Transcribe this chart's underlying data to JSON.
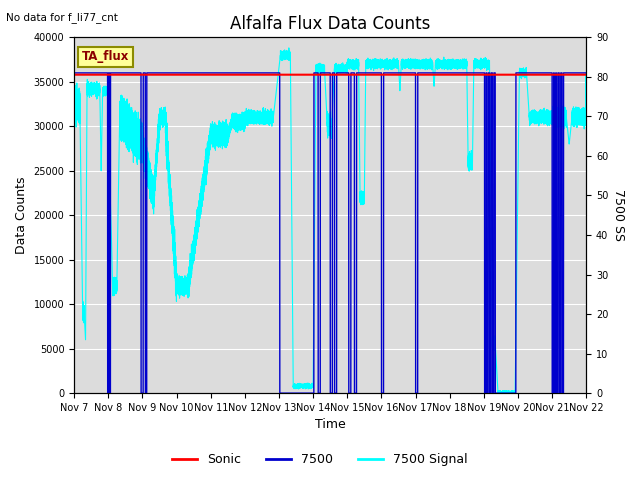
{
  "title": "Alfalfa Flux Data Counts",
  "top_left_text": "No data for f_li77_cnt",
  "box_label": "TA_flux",
  "xlabel": "Time",
  "ylabel_left": "Data Counts",
  "ylabel_right": "7500 SS",
  "ylim_left": [
    0,
    40000
  ],
  "ylim_right": [
    0,
    90
  ],
  "yticks_left": [
    0,
    5000,
    10000,
    15000,
    20000,
    25000,
    30000,
    35000,
    40000
  ],
  "yticks_right": [
    0,
    10,
    20,
    30,
    40,
    50,
    60,
    70,
    80,
    90
  ],
  "sonic_level": 35800,
  "sonic_color": "#FF0000",
  "blue7500_color": "#0000CD",
  "cyan_color": "#00FFFF",
  "bg_color": "#DCDCDC",
  "fig_bg_color": "#FFFFFF",
  "legend_labels": [
    "Sonic",
    "7500",
    "7500 Signal"
  ],
  "legend_colors": [
    "#FF0000",
    "#0000CD",
    "#00FFFF"
  ],
  "title_fontsize": 12,
  "tick_fontsize": 7,
  "ylabel_fontsize": 9
}
